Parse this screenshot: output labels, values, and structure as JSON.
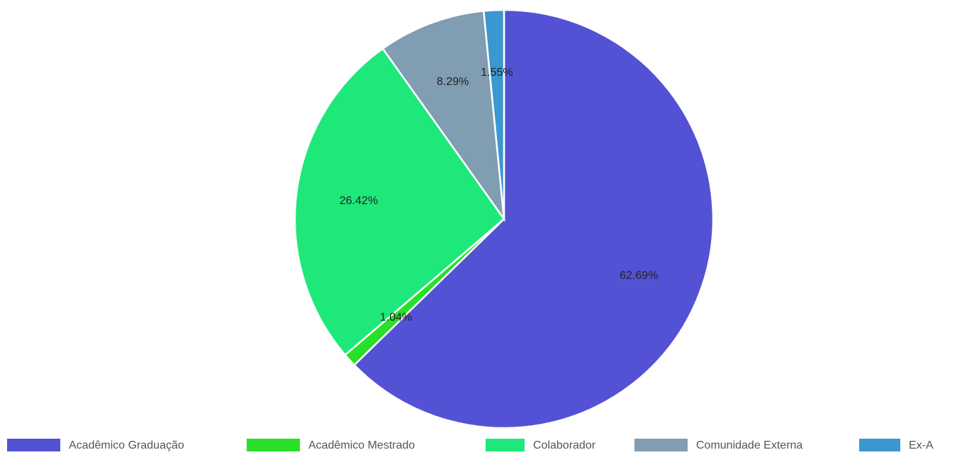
{
  "chart_data": {
    "type": "pie",
    "categories": [
      "Acadêmico Graduação",
      "Acadêmico Mestrado",
      "Colaborador",
      "Comunidade Externa",
      "Ex-A"
    ],
    "values": [
      62.69,
      1.04,
      26.42,
      8.29,
      1.55
    ],
    "value_labels": [
      "62.69%",
      "1.04%",
      "26.42%",
      "8.29%",
      "1.55%"
    ],
    "colors": [
      "#5352d4",
      "#27e027",
      "#1ee87a",
      "#809db2",
      "#3a97d0"
    ],
    "legend": "bottom"
  }
}
